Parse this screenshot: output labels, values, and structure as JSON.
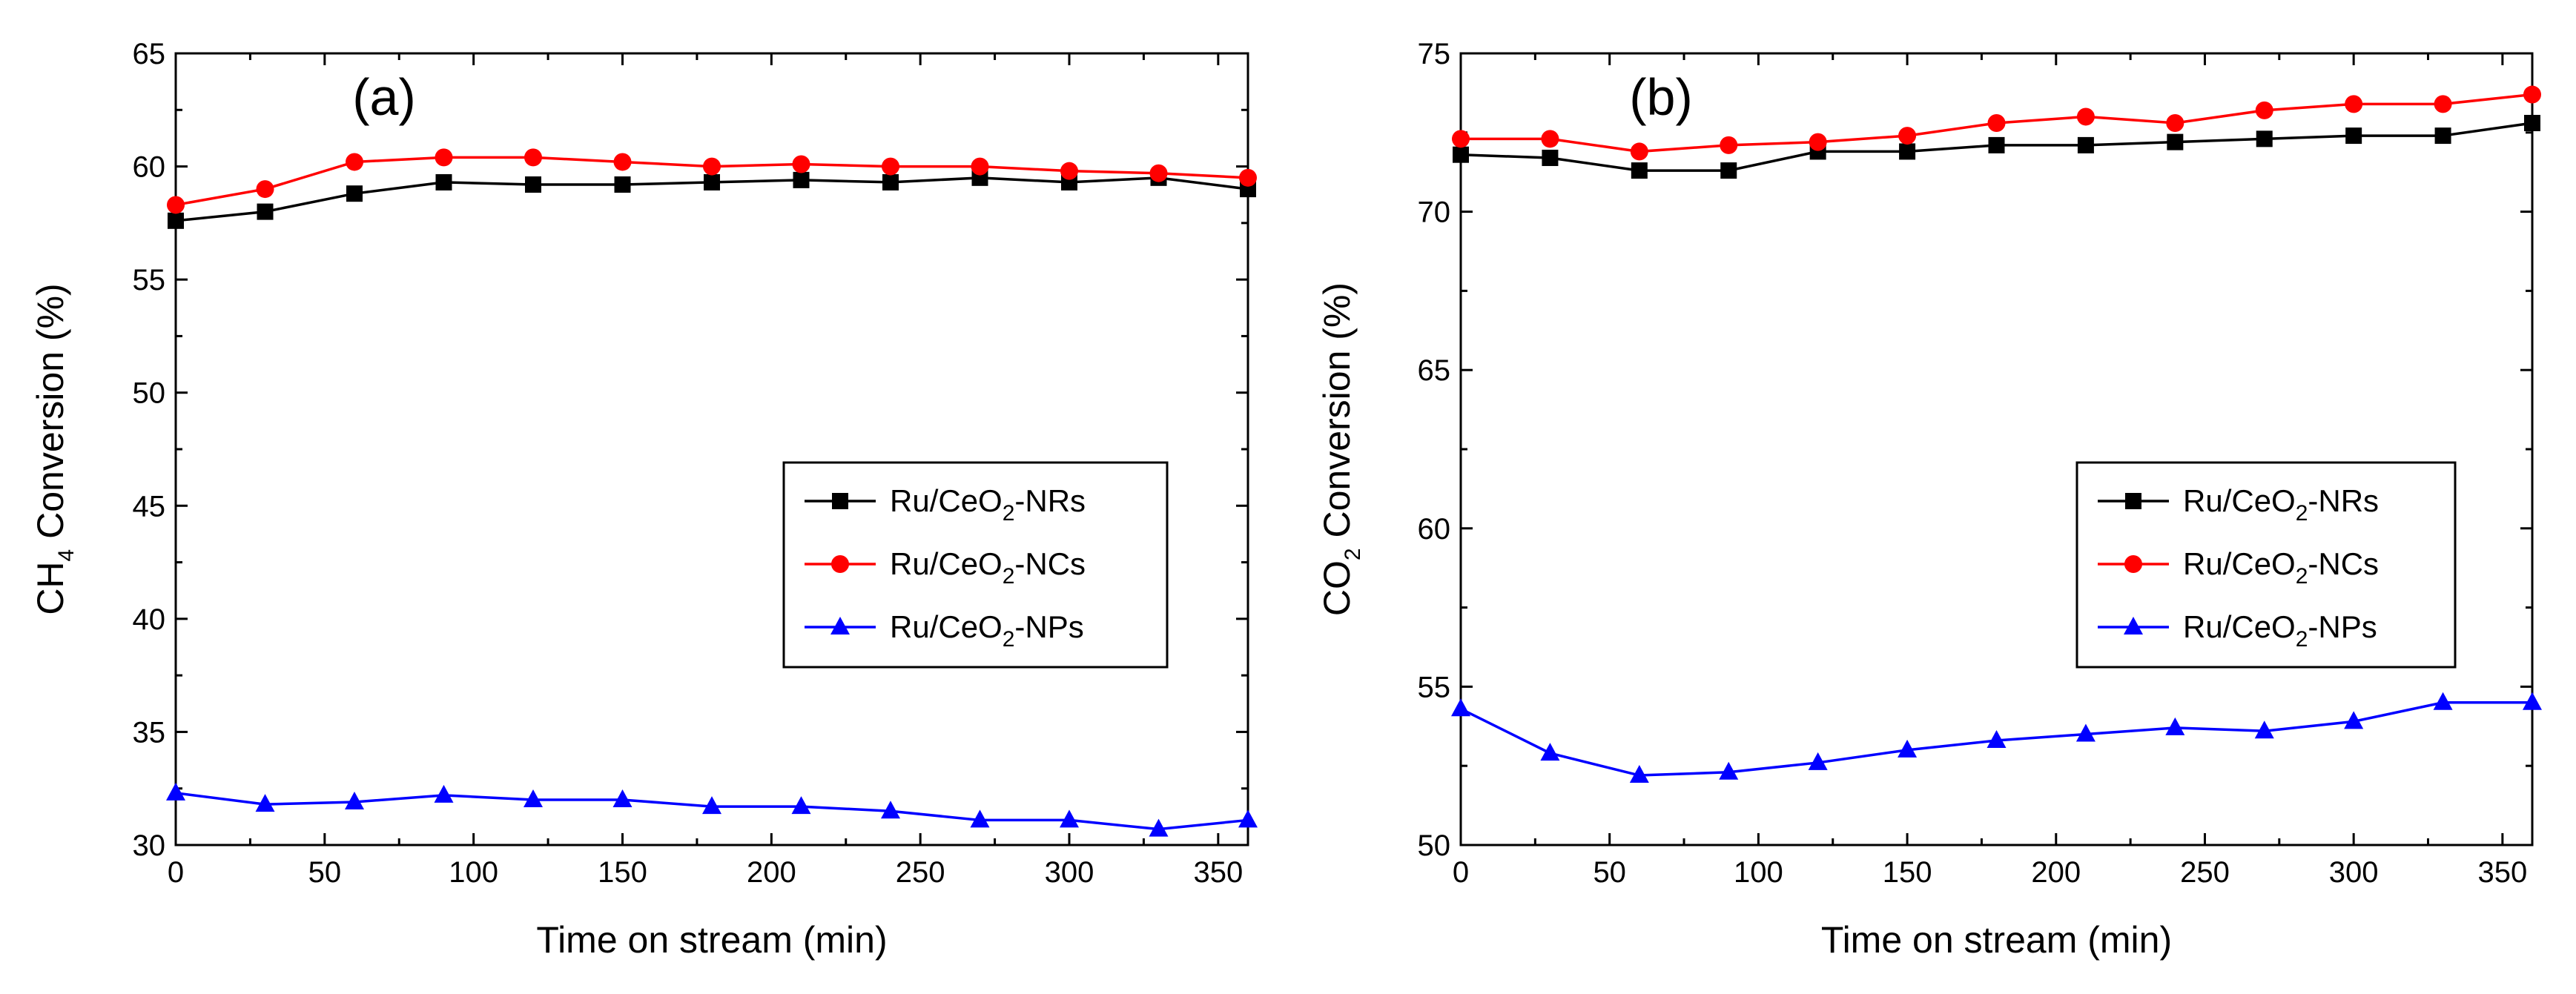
{
  "chart_data": [
    {
      "type": "line",
      "panel_label": "(a)",
      "xlabel": "Time on stream (min)",
      "ylabel": {
        "prefix": "CH",
        "sub": "4",
        "suffix": " Conversion (%)"
      },
      "xlim": [
        0,
        360
      ],
      "ylim": [
        30,
        65
      ],
      "xticks": [
        0,
        50,
        100,
        150,
        200,
        250,
        300,
        350
      ],
      "yticks": [
        30,
        35,
        40,
        45,
        50,
        55,
        60,
        65
      ],
      "x": [
        0,
        30,
        60,
        90,
        120,
        150,
        180,
        210,
        240,
        270,
        300,
        330,
        360
      ],
      "legend_position": "right-center",
      "series": [
        {
          "name": "Ru/CeO2-NRs",
          "label": {
            "pre": "Ru/CeO",
            "sub": "2",
            "post": "-NRs"
          },
          "color": "#000000",
          "marker": "square",
          "values": [
            57.6,
            58.0,
            58.8,
            59.3,
            59.2,
            59.2,
            59.3,
            59.4,
            59.3,
            59.5,
            59.3,
            59.5,
            59.0
          ]
        },
        {
          "name": "Ru/CeO2-NCs",
          "label": {
            "pre": "Ru/CeO",
            "sub": "2",
            "post": "-NCs"
          },
          "color": "#ff0000",
          "marker": "circle",
          "values": [
            58.3,
            59.0,
            60.2,
            60.4,
            60.4,
            60.2,
            60.0,
            60.1,
            60.0,
            60.0,
            59.8,
            59.7,
            59.5
          ]
        },
        {
          "name": "Ru/CeO2-NPs",
          "label": {
            "pre": "Ru/CeO",
            "sub": "2",
            "post": "-NPs"
          },
          "color": "#0000ff",
          "marker": "triangle",
          "values": [
            32.3,
            31.8,
            31.9,
            32.2,
            32.0,
            32.0,
            31.7,
            31.7,
            31.5,
            31.1,
            31.1,
            30.7,
            31.1
          ]
        }
      ]
    },
    {
      "type": "line",
      "panel_label": "(b)",
      "xlabel": "Time on stream (min)",
      "ylabel": {
        "prefix": "CO",
        "sub": "2",
        "suffix": " Conversion (%)"
      },
      "xlim": [
        0,
        360
      ],
      "ylim": [
        50,
        75
      ],
      "xticks": [
        0,
        50,
        100,
        150,
        200,
        250,
        300,
        350
      ],
      "yticks": [
        50,
        55,
        60,
        65,
        70,
        75
      ],
      "x": [
        0,
        30,
        60,
        90,
        120,
        150,
        180,
        210,
        240,
        270,
        300,
        330,
        360
      ],
      "legend_position": "right-center",
      "series": [
        {
          "name": "Ru/CeO2-NRs",
          "label": {
            "pre": "Ru/CeO",
            "sub": "2",
            "post": "-NRs"
          },
          "color": "#000000",
          "marker": "square",
          "values": [
            71.8,
            71.7,
            71.3,
            71.3,
            71.9,
            71.9,
            72.1,
            72.1,
            72.2,
            72.3,
            72.4,
            72.4,
            72.8
          ]
        },
        {
          "name": "Ru/CeO2-NCs",
          "label": {
            "pre": "Ru/CeO",
            "sub": "2",
            "post": "-NCs"
          },
          "color": "#ff0000",
          "marker": "circle",
          "values": [
            72.3,
            72.3,
            71.9,
            72.1,
            72.2,
            72.4,
            72.8,
            73.0,
            72.8,
            73.2,
            73.4,
            73.4,
            73.7
          ]
        },
        {
          "name": "Ru/CeO2-NPs",
          "label": {
            "pre": "Ru/CeO",
            "sub": "2",
            "post": "-NPs"
          },
          "color": "#0000ff",
          "marker": "triangle",
          "values": [
            54.3,
            52.9,
            52.2,
            52.3,
            52.6,
            53.0,
            53.3,
            53.5,
            53.7,
            53.6,
            53.9,
            54.5,
            54.5
          ]
        }
      ]
    }
  ]
}
